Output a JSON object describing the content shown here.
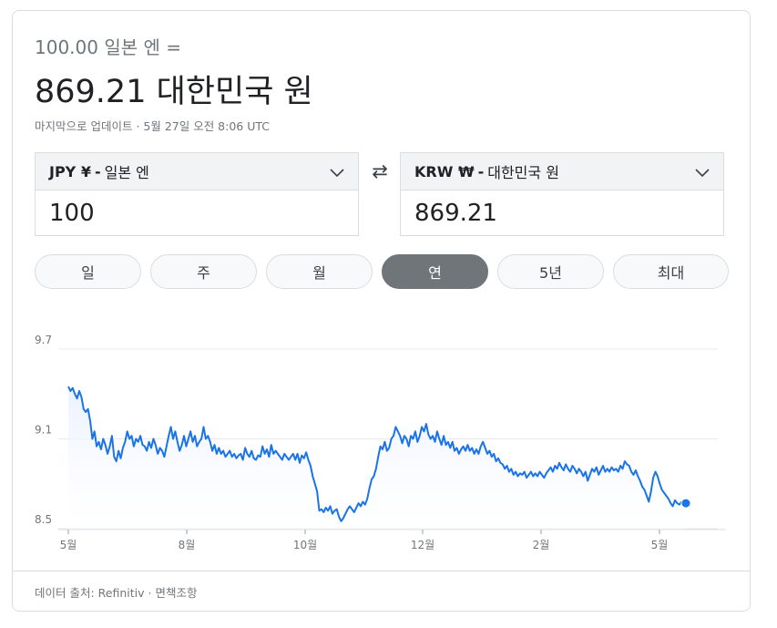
{
  "header": {
    "from_line": "100.00 일본 엔 =",
    "result_line": "869.21 대한민국 원",
    "updated": "마지막으로 업데이트 · 5월 27일 오전 8:06 UTC"
  },
  "converter": {
    "from": {
      "code": "JPY ¥",
      "sep": "-",
      "name": "일본 엔",
      "amount": "100"
    },
    "to": {
      "code": "KRW ₩",
      "sep": "-",
      "name": "대한민국 원",
      "amount": "869.21"
    },
    "swap_icon": "⇄"
  },
  "tabs": [
    {
      "label": "일",
      "active": false
    },
    {
      "label": "주",
      "active": false
    },
    {
      "label": "월",
      "active": false
    },
    {
      "label": "연",
      "active": true
    },
    {
      "label": "5년",
      "active": false
    },
    {
      "label": "최대",
      "active": false
    }
  ],
  "colors": {
    "line": "#1a73e8",
    "active_tab": "#70757a",
    "grid": "#e8eaed"
  },
  "chart_data": {
    "type": "line",
    "x_ticks": [
      "5월",
      "8월",
      "10월",
      "12월",
      "2월",
      "5월"
    ],
    "y_ticks": [
      "9.7",
      "9.1",
      "8.5"
    ],
    "ylim": [
      8.45,
      9.75
    ],
    "grid": true,
    "series": [
      {
        "values": [
          9.45,
          9.42,
          9.44,
          9.4,
          9.37,
          9.42,
          9.38,
          9.3,
          9.28,
          9.3,
          9.22,
          9.1,
          9.15,
          9.05,
          9.08,
          9.03,
          9.1,
          9.06,
          9.0,
          9.05,
          9.12,
          8.98,
          8.95,
          9.02,
          8.97,
          9.04,
          9.08,
          9.15,
          9.1,
          9.12,
          9.05,
          9.1,
          9.08,
          9.12,
          9.06,
          9.05,
          9.02,
          9.08,
          9.04,
          9.1,
          9.06,
          9.0,
          9.04,
          9.02,
          8.98,
          9.05,
          9.12,
          9.18,
          9.1,
          9.15,
          9.08,
          9.02,
          9.06,
          9.12,
          9.05,
          9.1,
          9.15,
          9.08,
          9.12,
          9.05,
          9.08,
          9.1,
          9.18,
          9.1,
          9.12,
          9.08,
          9.02,
          9.06,
          9.0,
          9.04,
          9.0,
          9.02,
          8.98,
          9.0,
          9.02,
          8.98,
          9.0,
          8.97,
          8.99,
          9.0,
          8.96,
          9.04,
          9.0,
          8.98,
          9.02,
          8.97,
          8.96,
          8.99,
          8.98,
          9.05,
          9.0,
          9.03,
          8.98,
          9.06,
          9.0,
          9.02,
          9.0,
          8.98,
          8.96,
          9.0,
          8.98,
          8.96,
          8.98,
          9.0,
          8.96,
          9.0,
          8.94,
          8.99,
          8.97,
          9.01,
          8.96,
          8.92,
          8.85,
          8.8,
          8.75,
          8.62,
          8.63,
          8.61,
          8.64,
          8.62,
          8.65,
          8.6,
          8.62,
          8.63,
          8.58,
          8.55,
          8.57,
          8.6,
          8.63,
          8.65,
          8.63,
          8.61,
          8.64,
          8.67,
          8.65,
          8.68,
          8.66,
          8.7,
          8.77,
          8.83,
          8.85,
          8.9,
          8.98,
          9.05,
          9.03,
          9.08,
          9.02,
          9.04,
          9.1,
          9.12,
          9.18,
          9.15,
          9.12,
          9.07,
          9.12,
          9.1,
          9.05,
          9.12,
          9.1,
          9.15,
          9.08,
          9.12,
          9.18,
          9.15,
          9.2,
          9.13,
          9.1,
          9.12,
          9.08,
          9.15,
          9.1,
          9.06,
          9.12,
          9.06,
          9.08,
          9.04,
          9.08,
          9.02,
          9.04,
          9.0,
          9.03,
          9.05,
          9.02,
          9.06,
          9.02,
          9.04,
          9.0,
          9.03,
          9.0,
          9.05,
          9.08,
          9.04,
          9.0,
          9.02,
          8.98,
          9.0,
          8.95,
          8.97,
          8.94,
          8.93,
          8.9,
          8.92,
          8.88,
          8.9,
          8.86,
          8.88,
          8.85,
          8.87,
          8.86,
          8.88,
          8.84,
          8.86,
          8.88,
          8.85,
          8.87,
          8.85,
          8.88,
          8.86,
          8.84,
          8.87,
          8.89,
          8.91,
          8.88,
          8.92,
          8.9,
          8.94,
          8.91,
          8.89,
          8.93,
          8.9,
          8.88,
          8.92,
          8.9,
          8.87,
          8.9,
          8.88,
          8.85,
          8.88,
          8.82,
          8.86,
          8.9,
          8.88,
          8.91,
          8.86,
          8.89,
          8.92,
          8.88,
          8.9,
          8.88,
          8.91,
          8.89,
          8.9,
          8.88,
          8.92,
          8.9,
          8.95,
          8.93,
          8.92,
          8.88,
          8.86,
          8.89,
          8.85,
          8.82,
          8.78,
          8.76,
          8.72,
          8.68,
          8.75,
          8.84,
          8.88,
          8.85,
          8.8,
          8.76,
          8.74,
          8.72,
          8.7,
          8.67,
          8.65,
          8.69,
          8.67,
          8.66,
          8.68,
          8.67,
          8.67
        ]
      }
    ],
    "last_point_marker": true
  },
  "footer": {
    "source": "데이터 출처: Refinitiv",
    "sep": "·",
    "disclaimer": "면책조항"
  }
}
